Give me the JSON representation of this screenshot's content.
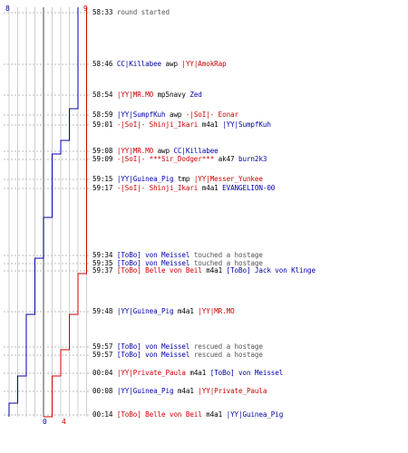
{
  "score": {
    "ct_start": "8",
    "t_start": "9",
    "ct_end": "0",
    "t_end": "4",
    "ct_color": "#0000aa",
    "t_color": "#cc0000"
  },
  "chart_data": {
    "type": "line",
    "x": [
      0,
      1,
      2,
      3,
      4,
      5,
      6,
      7,
      8,
      9,
      10,
      11,
      12,
      13,
      14,
      15,
      16,
      17,
      18,
      19,
      20,
      21,
      22,
      23,
      24
    ],
    "series": [
      {
        "color": "#0000aa",
        "values": [
          8,
          8,
          8,
          8,
          8,
          8,
          7,
          7,
          7,
          6,
          5,
          5,
          5,
          5,
          5,
          4,
          3,
          3,
          2,
          2,
          2,
          1,
          1,
          0,
          0
        ]
      },
      {
        "color": "#cc0000",
        "values": [
          9,
          9,
          9,
          9,
          9,
          9,
          9,
          9,
          9,
          9,
          9,
          9,
          9,
          9,
          9,
          9,
          9,
          8,
          7,
          6,
          6,
          5,
          5,
          5,
          4
        ]
      }
    ],
    "ylim": [
      0,
      9
    ]
  },
  "log": [
    {
      "time": "58:33",
      "parts": [
        {
          "c": "ev",
          "t": "round started"
        }
      ]
    },
    {
      "time": "58:46",
      "parts": [
        {
          "c": "ct",
          "t": "CC|Killabee"
        },
        {
          "c": "wp",
          "t": " awp "
        },
        {
          "c": "t",
          "t": "|YY|AmokRap"
        }
      ]
    },
    {
      "time": "58:54",
      "parts": [
        {
          "c": "t",
          "t": "|YY|MR.MO"
        },
        {
          "c": "wp",
          "t": " mp5navy "
        },
        {
          "c": "ct",
          "t": "Zed"
        }
      ]
    },
    {
      "time": "58:59",
      "parts": [
        {
          "c": "ct",
          "t": "|YY|SumpfKuh"
        },
        {
          "c": "wp",
          "t": " awp "
        },
        {
          "c": "t",
          "t": "-|SoI|- Eonar"
        }
      ]
    },
    {
      "time": "59:01",
      "parts": [
        {
          "c": "t",
          "t": "-|SoI|- Shinji_Ikari"
        },
        {
          "c": "wp",
          "t": " m4a1 "
        },
        {
          "c": "ct",
          "t": "|YY|SumpfKuh"
        }
      ]
    },
    {
      "time": "59:08",
      "parts": [
        {
          "c": "t",
          "t": "|YY|MR.MO"
        },
        {
          "c": "wp",
          "t": " awp "
        },
        {
          "c": "ct",
          "t": "CC|Killabee"
        }
      ]
    },
    {
      "time": "59:09",
      "parts": [
        {
          "c": "t",
          "t": "-|SoI|- ***Sir_Dodger***"
        },
        {
          "c": "wp",
          "t": " ak47 "
        },
        {
          "c": "ct",
          "t": "burn2k3"
        }
      ]
    },
    {
      "time": "59:15",
      "parts": [
        {
          "c": "ct",
          "t": "|YY|Guinea_Pig"
        },
        {
          "c": "wp",
          "t": " tmp "
        },
        {
          "c": "t",
          "t": "|YY|Messer_Yunkee"
        }
      ]
    },
    {
      "time": "59:17",
      "parts": [
        {
          "c": "t",
          "t": "-|SoI|- Shinji_Ikari"
        },
        {
          "c": "wp",
          "t": " m4a1 "
        },
        {
          "c": "ct",
          "t": "EVANGELION-00"
        }
      ]
    },
    {
      "time": "59:34",
      "parts": [
        {
          "c": "ct",
          "t": "[ToBo] von Meissel"
        },
        {
          "c": "ev",
          "t": " touched a hostage"
        }
      ]
    },
    {
      "time": "59:35",
      "parts": [
        {
          "c": "ct",
          "t": "[ToBo] von Meissel"
        },
        {
          "c": "ev",
          "t": " touched a hostage"
        }
      ]
    },
    {
      "time": "59:37",
      "parts": [
        {
          "c": "t",
          "t": "[ToBo] Belle von Beil"
        },
        {
          "c": "wp",
          "t": " m4a1 "
        },
        {
          "c": "ct",
          "t": "[ToBo] Jack von Klinge"
        }
      ]
    },
    {
      "time": "59:48",
      "parts": [
        {
          "c": "ct",
          "t": "|YY|Guinea_Pig"
        },
        {
          "c": "wp",
          "t": " m4a1 "
        },
        {
          "c": "t",
          "t": "|YY|MR.MO"
        }
      ]
    },
    {
      "time": "59:57",
      "parts": [
        {
          "c": "ct",
          "t": "[ToBo] von Meissel"
        },
        {
          "c": "ev",
          "t": " rescued a hostage"
        }
      ]
    },
    {
      "time": "59:57",
      "parts": [
        {
          "c": "ct",
          "t": "[ToBo] von Meissel"
        },
        {
          "c": "ev",
          "t": " rescued a hostage"
        }
      ]
    },
    {
      "time": "00:04",
      "parts": [
        {
          "c": "t",
          "t": "|YY|Private_Paula"
        },
        {
          "c": "wp",
          "t": " m4a1 "
        },
        {
          "c": "ct",
          "t": "[ToBo] von Meissel"
        }
      ]
    },
    {
      "time": "00:08",
      "parts": [
        {
          "c": "ct",
          "t": "|YY|Guinea_Pig"
        },
        {
          "c": "wp",
          "t": " m4a1 "
        },
        {
          "c": "t",
          "t": "|YY|Private_Paula"
        }
      ]
    },
    {
      "time": "00:14",
      "parts": [
        {
          "c": "t",
          "t": "[ToBo] Belle von Beil"
        },
        {
          "c": "wp",
          "t": " m4a1 "
        },
        {
          "c": "ct",
          "t": "|YY|Guinea_Pig"
        }
      ]
    }
  ]
}
